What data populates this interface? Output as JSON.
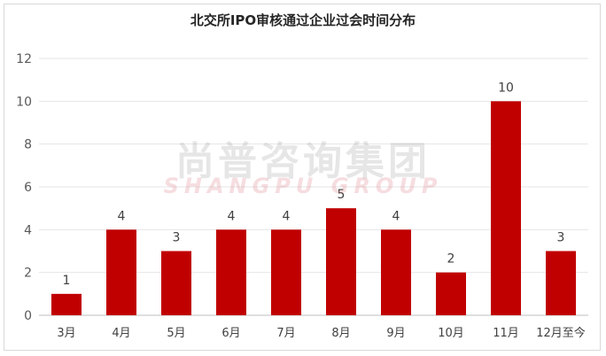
{
  "chart_data": {
    "type": "bar",
    "title": "北交所IPO审核通过企业过会时间分布",
    "categories": [
      "3月",
      "4月",
      "5月",
      "6月",
      "7月",
      "8月",
      "9月",
      "10月",
      "11月",
      "12月至今"
    ],
    "values": [
      1,
      4,
      3,
      4,
      4,
      5,
      4,
      2,
      10,
      3
    ],
    "ylim": [
      0,
      12
    ],
    "yticks": [
      0,
      2,
      4,
      6,
      8,
      10,
      12
    ],
    "grid": true,
    "bar_color": "#C00000",
    "show_data_labels": true
  },
  "watermark": {
    "cn": "尚普咨询集团",
    "en": "SHANGPU GROUP"
  }
}
